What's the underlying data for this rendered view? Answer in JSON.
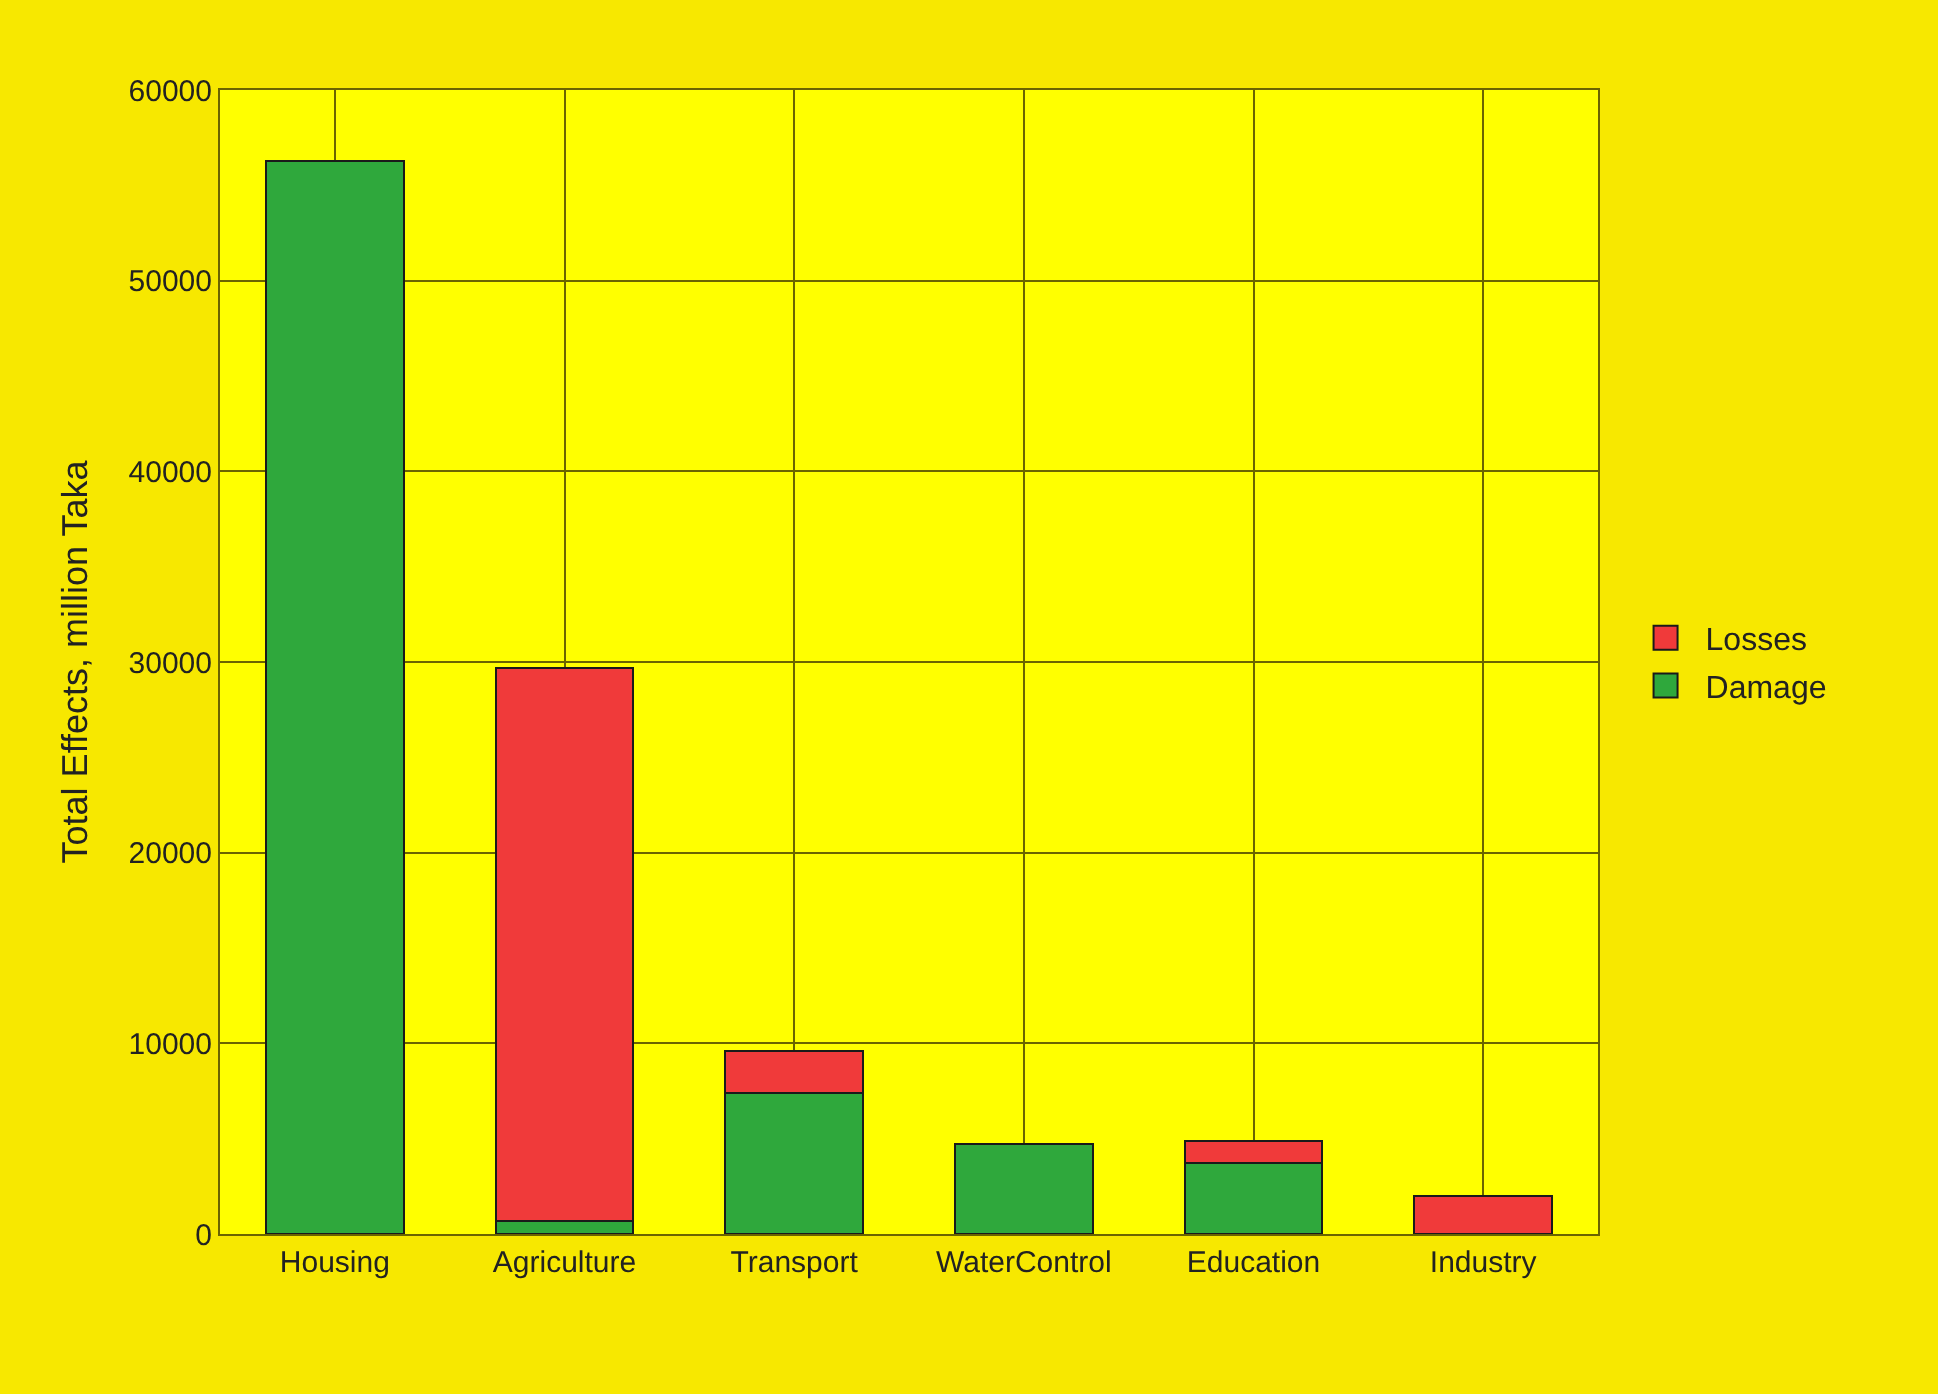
{
  "chart_data": {
    "type": "bar",
    "stacked": true,
    "ylabel": "Total Effects, million Taka",
    "categories": [
      "Housing",
      "Agriculture",
      "Transport",
      "WaterControl",
      "Education",
      "Industry"
    ],
    "series": [
      {
        "name": "Damage",
        "color": "#2fa83c",
        "values": [
          56300,
          700,
          7400,
          4700,
          3700,
          null
        ]
      },
      {
        "name": "Losses",
        "color": "#f03a3a",
        "values": [
          null,
          29000,
          2200,
          null,
          1200,
          2000
        ]
      }
    ],
    "ylim": [
      0,
      60000
    ],
    "yticks": [
      0,
      10000,
      20000,
      30000,
      40000,
      50000,
      60000
    ],
    "grid": true,
    "legend": "right"
  }
}
